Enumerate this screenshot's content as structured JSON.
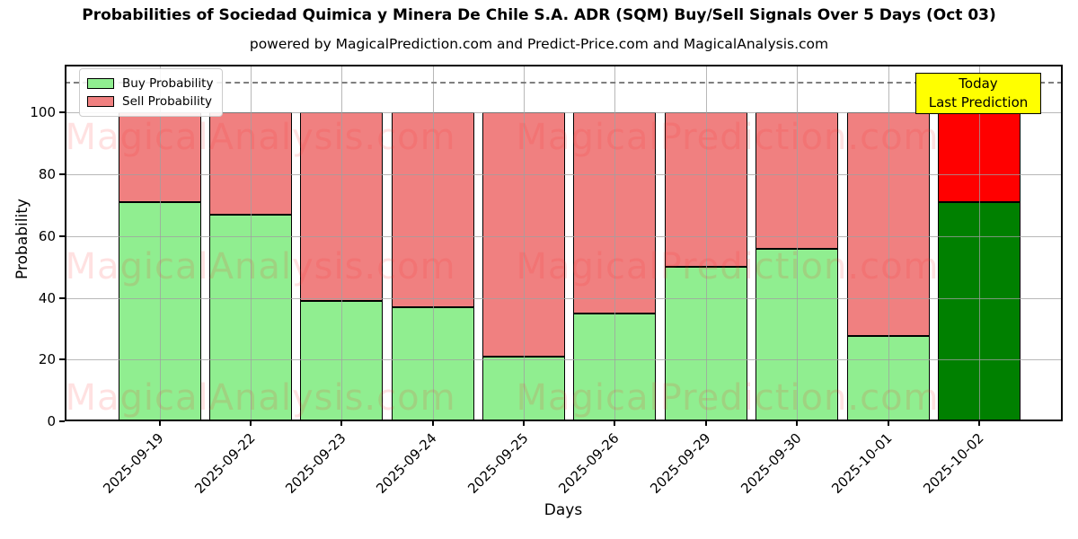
{
  "chart_data": {
    "type": "bar",
    "stacked": true,
    "title": "Probabilities of Sociedad Quimica y Minera De Chile S.A. ADR (SQM) Buy/Sell Signals Over 5 Days (Oct 03)",
    "subtitle": "powered by MagicalPrediction.com and Predict-Price.com and MagicalAnalysis.com",
    "xlabel": "Days",
    "ylabel": "Probability",
    "categories": [
      "2025-09-19",
      "2025-09-22",
      "2025-09-23",
      "2025-09-24",
      "2025-09-25",
      "2025-09-26",
      "2025-09-29",
      "2025-09-30",
      "2025-10-01",
      "2025-10-02"
    ],
    "series": [
      {
        "name": "Buy Probability",
        "color": "#90EE90",
        "values": [
          71,
          67,
          39,
          37,
          21,
          35,
          50,
          56,
          27.5,
          71
        ]
      },
      {
        "name": "Sell Probability",
        "color": "#F08080",
        "values": [
          29,
          33,
          61,
          63,
          79,
          65,
          50,
          44,
          72.5,
          29
        ]
      }
    ],
    "today_bar": {
      "index": 9,
      "buy_color": "#008000",
      "sell_color": "#FF0000"
    },
    "annotation": {
      "lines": [
        "Today",
        "Last Prediction"
      ],
      "bg": "#FFFF00"
    },
    "ylim": [
      0,
      115.5
    ],
    "yticks": [
      0,
      20,
      40,
      60,
      80,
      100
    ],
    "dashed_line_y": 110,
    "grid": true,
    "legend_position": "upper left",
    "watermark": {
      "left": "MagicalAnalysis.com",
      "right": "MagicalPrediction.com"
    }
  }
}
